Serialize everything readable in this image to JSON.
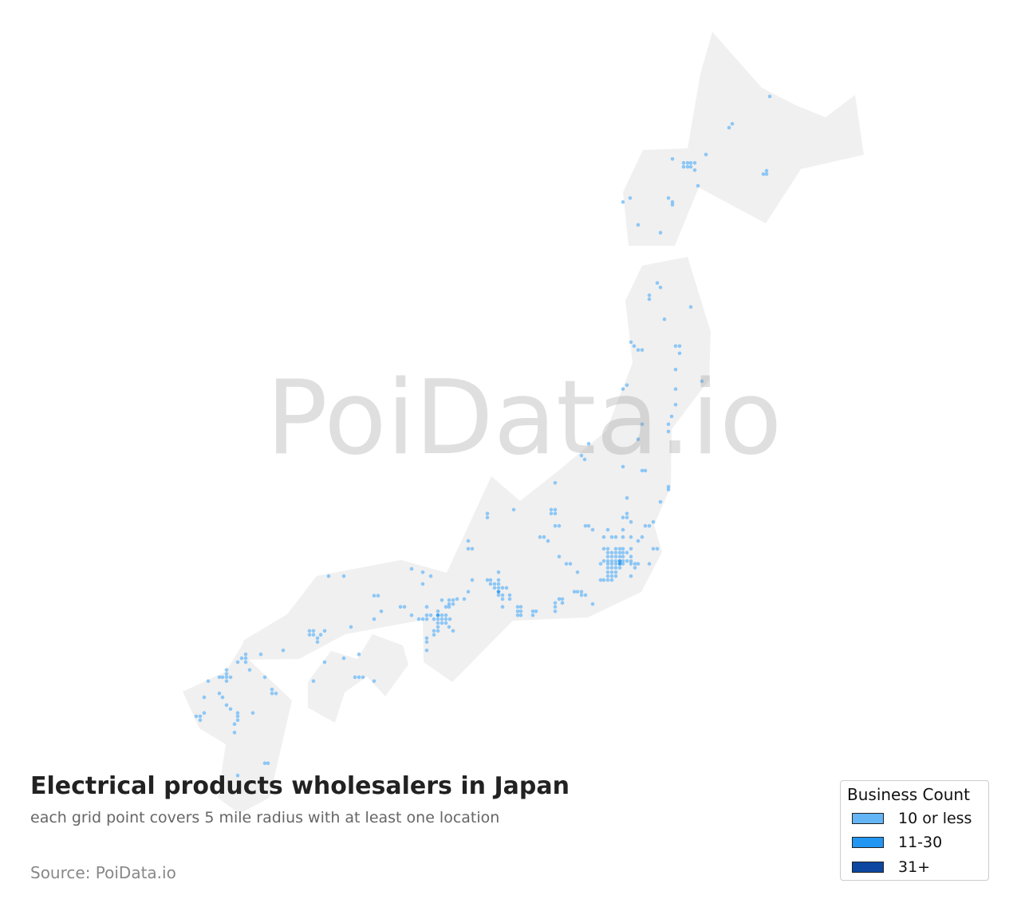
{
  "title": "Electrical products wholesalers in Japan",
  "subtitle": "each grid point covers 5 mile radius with at least one location",
  "source": "Source: PoiData.io",
  "watermark": "PoiData.io",
  "legend": {
    "title": "Business Count",
    "items": [
      {
        "label": "10 or less",
        "color": "#64b5f6"
      },
      {
        "label": "11-30",
        "color": "#2196f3"
      },
      {
        "label": "31+",
        "color": "#0d47a1"
      }
    ]
  },
  "colors": {
    "land": "#f0f0f0",
    "point_low": "#64b5f6",
    "point_mid": "#2196f3",
    "point_high": "#0d47a1"
  },
  "chart_data": {
    "type": "scatter",
    "coordinates": "lon/lat",
    "series": [
      {
        "name": "10 or less",
        "points": [
          [
            144.1,
            44.13
          ],
          [
            143.08,
            43.57
          ],
          [
            143.16,
            43.64
          ],
          [
            142.5,
            43.09
          ],
          [
            141.66,
            43.01
          ],
          [
            141.94,
            42.94
          ],
          [
            142.04,
            42.94
          ],
          [
            142.12,
            42.94
          ],
          [
            142.22,
            42.94
          ],
          [
            141.94,
            42.87
          ],
          [
            142.04,
            42.87
          ],
          [
            142.12,
            42.87
          ],
          [
            142.22,
            42.81
          ],
          [
            142.3,
            42.53
          ],
          [
            143.94,
            42.74
          ],
          [
            144.02,
            42.8
          ],
          [
            144.02,
            42.74
          ],
          [
            140.42,
            42.24
          ],
          [
            140.6,
            42.31
          ],
          [
            141.56,
            42.31
          ],
          [
            141.66,
            42.24
          ],
          [
            141.66,
            42.19
          ],
          [
            140.8,
            41.83
          ],
          [
            141.36,
            41.69
          ],
          [
            141.28,
            40.79
          ],
          [
            141.36,
            40.71
          ],
          [
            141.08,
            40.57
          ],
          [
            141.08,
            40.5
          ],
          [
            142.12,
            40.36
          ],
          [
            141.46,
            40.14
          ],
          [
            140.62,
            39.73
          ],
          [
            140.7,
            39.66
          ],
          [
            140.8,
            39.59
          ],
          [
            140.9,
            39.59
          ],
          [
            141.74,
            39.66
          ],
          [
            141.84,
            39.66
          ],
          [
            141.84,
            39.53
          ],
          [
            141.74,
            39.24
          ],
          [
            142.4,
            39.03
          ],
          [
            141.74,
            38.89
          ],
          [
            140.52,
            38.96
          ],
          [
            140.42,
            38.89
          ],
          [
            141.74,
            38.61
          ],
          [
            141.64,
            38.4
          ],
          [
            140.9,
            38.26
          ],
          [
            141.56,
            38.26
          ],
          [
            141.56,
            38.13
          ],
          [
            140.8,
            37.99
          ],
          [
            139.56,
            37.91
          ],
          [
            139.38,
            37.7
          ],
          [
            139.46,
            37.63
          ],
          [
            140.42,
            37.5
          ],
          [
            140.9,
            37.43
          ],
          [
            140.98,
            37.43
          ],
          [
            141.56,
            37.14
          ],
          [
            141.56,
            37.09
          ],
          [
            141.36,
            36.87
          ],
          [
            140.52,
            36.94
          ],
          [
            140.52,
            36.66
          ],
          [
            140.42,
            36.59
          ],
          [
            140.52,
            36.59
          ],
          [
            140.62,
            36.51
          ],
          [
            141.18,
            36.51
          ],
          [
            140.98,
            36.44
          ],
          [
            141.08,
            36.44
          ],
          [
            139.48,
            36.44
          ],
          [
            139.56,
            36.44
          ],
          [
            139.66,
            36.37
          ],
          [
            140.04,
            36.37
          ],
          [
            140.42,
            36.37
          ],
          [
            139.94,
            36.24
          ],
          [
            140.14,
            36.24
          ],
          [
            140.24,
            36.24
          ],
          [
            140.42,
            36.24
          ],
          [
            140.62,
            36.24
          ],
          [
            140.9,
            36.24
          ],
          [
            140.8,
            36.17
          ],
          [
            138.34,
            36.24
          ],
          [
            138.44,
            36.24
          ],
          [
            138.54,
            36.17
          ],
          [
            137.02,
            36.66
          ],
          [
            137.02,
            36.59
          ],
          [
            137.68,
            36.73
          ],
          [
            138.62,
            36.73
          ],
          [
            138.72,
            36.73
          ],
          [
            138.62,
            36.66
          ],
          [
            138.72,
            36.66
          ],
          [
            138.72,
            36.44
          ],
          [
            138.82,
            36.44
          ],
          [
            138.72,
            37.21
          ],
          [
            136.54,
            36.17
          ],
          [
            136.54,
            36.03
          ],
          [
            136.64,
            36.03
          ],
          [
            138.82,
            35.89
          ],
          [
            139.0,
            35.76
          ],
          [
            139.1,
            35.76
          ],
          [
            139.28,
            35.61
          ],
          [
            141.18,
            36.03
          ],
          [
            141.28,
            36.03
          ],
          [
            141.08,
            35.76
          ],
          [
            140.62,
            35.54
          ],
          [
            139.66,
            35.04
          ],
          [
            137.3,
            35.61
          ],
          [
            136.64,
            35.47
          ],
          [
            139.94,
            36.03
          ],
          [
            140.04,
            36.03
          ],
          [
            140.24,
            36.03
          ],
          [
            140.34,
            36.03
          ],
          [
            140.42,
            36.03
          ],
          [
            140.62,
            36.03
          ],
          [
            140.04,
            35.96
          ],
          [
            140.14,
            35.96
          ],
          [
            140.24,
            35.96
          ],
          [
            140.34,
            35.96
          ],
          [
            140.42,
            35.96
          ],
          [
            140.52,
            35.96
          ],
          [
            140.04,
            35.89
          ],
          [
            140.14,
            35.89
          ],
          [
            140.24,
            35.89
          ],
          [
            140.34,
            35.89
          ],
          [
            140.42,
            35.89
          ],
          [
            140.62,
            35.89
          ],
          [
            139.94,
            35.81
          ],
          [
            140.04,
            35.81
          ],
          [
            140.14,
            35.81
          ],
          [
            140.24,
            35.81
          ],
          [
            140.42,
            35.81
          ],
          [
            140.52,
            35.81
          ],
          [
            140.62,
            35.81
          ],
          [
            139.86,
            35.76
          ],
          [
            140.04,
            35.76
          ],
          [
            140.14,
            35.76
          ],
          [
            140.24,
            35.76
          ],
          [
            140.42,
            35.76
          ],
          [
            140.62,
            35.76
          ],
          [
            140.72,
            35.76
          ],
          [
            140.8,
            35.76
          ],
          [
            140.04,
            35.69
          ],
          [
            140.14,
            35.69
          ],
          [
            140.24,
            35.69
          ],
          [
            140.34,
            35.69
          ],
          [
            140.72,
            35.69
          ],
          [
            140.04,
            35.61
          ],
          [
            140.14,
            35.61
          ],
          [
            140.24,
            35.61
          ],
          [
            140.04,
            35.54
          ],
          [
            140.14,
            35.54
          ],
          [
            140.24,
            35.54
          ],
          [
            139.86,
            35.47
          ],
          [
            139.94,
            35.47
          ],
          [
            140.04,
            35.47
          ],
          [
            140.14,
            35.47
          ],
          [
            137.02,
            35.47
          ],
          [
            137.1,
            35.47
          ],
          [
            137.3,
            35.47
          ],
          [
            137.1,
            35.4
          ],
          [
            137.2,
            35.4
          ],
          [
            137.3,
            35.4
          ],
          [
            137.2,
            35.33
          ],
          [
            137.3,
            35.33
          ],
          [
            137.4,
            35.33
          ],
          [
            137.5,
            35.33
          ],
          [
            137.3,
            35.2
          ],
          [
            137.4,
            35.2
          ],
          [
            137.58,
            35.2
          ],
          [
            137.4,
            35.13
          ],
          [
            137.58,
            35.13
          ],
          [
            137.4,
            34.99
          ],
          [
            137.78,
            34.99
          ],
          [
            137.86,
            34.99
          ],
          [
            137.78,
            34.91
          ],
          [
            137.86,
            34.91
          ],
          [
            137.78,
            34.84
          ],
          [
            137.86,
            34.84
          ],
          [
            138.16,
            34.91
          ],
          [
            138.24,
            34.91
          ],
          [
            138.16,
            34.84
          ],
          [
            136.54,
            35.26
          ],
          [
            136.26,
            35.13
          ],
          [
            136.44,
            35.13
          ],
          [
            139.2,
            35.26
          ],
          [
            139.28,
            35.26
          ],
          [
            139.38,
            35.26
          ],
          [
            139.38,
            35.2
          ],
          [
            139.48,
            35.2
          ],
          [
            138.82,
            35.13
          ],
          [
            138.9,
            35.13
          ],
          [
            138.72,
            35.06
          ],
          [
            138.9,
            35.06
          ],
          [
            138.72,
            34.99
          ],
          [
            138.72,
            34.91
          ],
          [
            135.12,
            35.67
          ],
          [
            135.4,
            35.61
          ],
          [
            135.6,
            35.54
          ],
          [
            135.4,
            35.4
          ],
          [
            135.88,
            35.11
          ],
          [
            136.06,
            35.11
          ],
          [
            136.16,
            35.11
          ],
          [
            136.06,
            35.04
          ],
          [
            136.16,
            35.04
          ],
          [
            135.98,
            34.99
          ],
          [
            136.06,
            34.99
          ],
          [
            135.5,
            34.99
          ],
          [
            135.78,
            34.91
          ],
          [
            135.5,
            34.84
          ],
          [
            135.6,
            34.84
          ],
          [
            135.88,
            34.84
          ],
          [
            135.98,
            34.84
          ],
          [
            135.12,
            34.84
          ],
          [
            135.3,
            34.77
          ],
          [
            135.4,
            34.77
          ],
          [
            135.5,
            34.77
          ],
          [
            135.68,
            34.77
          ],
          [
            135.78,
            34.77
          ],
          [
            135.88,
            34.77
          ],
          [
            135.98,
            34.77
          ],
          [
            136.08,
            34.77
          ],
          [
            135.78,
            34.7
          ],
          [
            135.88,
            34.7
          ],
          [
            135.98,
            34.7
          ],
          [
            136.06,
            34.63
          ],
          [
            135.78,
            34.63
          ],
          [
            135.68,
            34.56
          ],
          [
            135.78,
            34.56
          ],
          [
            136.16,
            34.56
          ],
          [
            135.68,
            34.49
          ],
          [
            135.5,
            34.43
          ],
          [
            135.5,
            34.36
          ],
          [
            135.5,
            34.21
          ],
          [
            133.04,
            35.54
          ],
          [
            133.42,
            35.54
          ],
          [
            134.18,
            35.19
          ],
          [
            134.28,
            35.19
          ],
          [
            134.36,
            34.91
          ],
          [
            134.18,
            34.77
          ],
          [
            134.84,
            34.99
          ],
          [
            134.94,
            34.99
          ],
          [
            133.6,
            34.63
          ],
          [
            132.56,
            34.56
          ],
          [
            132.66,
            34.56
          ],
          [
            132.94,
            34.56
          ],
          [
            132.56,
            34.49
          ],
          [
            132.66,
            34.49
          ],
          [
            132.84,
            34.49
          ],
          [
            132.76,
            34.43
          ],
          [
            132.76,
            34.36
          ],
          [
            133.8,
            34.14
          ],
          [
            133.42,
            34.07
          ],
          [
            132.94,
            34.0
          ],
          [
            132.66,
            33.66
          ],
          [
            133.7,
            33.73
          ],
          [
            133.8,
            33.73
          ],
          [
            133.9,
            33.73
          ],
          [
            134.18,
            33.66
          ],
          [
            131.9,
            34.21
          ],
          [
            131.34,
            34.14
          ],
          [
            130.96,
            34.14
          ],
          [
            130.86,
            34.07
          ],
          [
            130.96,
            34.07
          ],
          [
            130.76,
            34.0
          ],
          [
            130.96,
            34.0
          ],
          [
            131.06,
            33.86
          ],
          [
            130.48,
            33.86
          ],
          [
            130.48,
            33.79
          ],
          [
            130.3,
            33.73
          ],
          [
            130.38,
            33.73
          ],
          [
            130.48,
            33.73
          ],
          [
            130.58,
            33.73
          ],
          [
            130.48,
            33.66
          ],
          [
            130.02,
            33.66
          ],
          [
            131.44,
            33.73
          ],
          [
            131.62,
            33.51
          ],
          [
            131.62,
            33.44
          ],
          [
            131.72,
            33.44
          ],
          [
            129.92,
            33.37
          ],
          [
            130.3,
            33.44
          ],
          [
            130.38,
            33.37
          ],
          [
            130.48,
            33.23
          ],
          [
            130.58,
            33.16
          ],
          [
            130.76,
            33.09
          ],
          [
            130.76,
            33.03
          ],
          [
            130.76,
            32.96
          ],
          [
            131.14,
            33.09
          ],
          [
            129.92,
            33.09
          ],
          [
            129.72,
            33.03
          ],
          [
            129.82,
            33.03
          ],
          [
            129.82,
            32.96
          ],
          [
            130.68,
            32.89
          ],
          [
            130.68,
            32.74
          ],
          [
            131.44,
            32.19
          ],
          [
            131.52,
            32.19
          ],
          [
            130.76,
            31.97
          ],
          [
            130.58,
            31.77
          ]
        ]
      },
      {
        "name": "11-30",
        "points": [
          [
            140.34,
            35.81
          ],
          [
            140.34,
            35.76
          ],
          [
            137.3,
            35.26
          ],
          [
            135.78,
            34.84
          ]
        ]
      },
      {
        "name": "31+",
        "points": []
      }
    ]
  }
}
